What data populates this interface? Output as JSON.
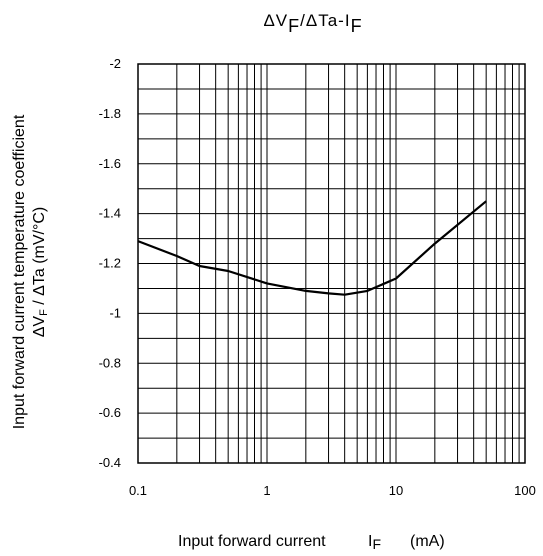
{
  "chart_data": {
    "type": "line",
    "title": {
      "base": "ΔV",
      "sub1": "F",
      "mid": "/ΔTa-I",
      "sub2": "F"
    },
    "xlabel": {
      "text": "Input forward current",
      "sym": "I",
      "sub": "F",
      "unit": "(mA)"
    },
    "ylabel": {
      "line1": "Input forward current temperature coefficient",
      "line2_pre": "ΔV",
      "line2_sub": "F",
      "line2_post": " / ΔTa (mV/°C)"
    },
    "x_scale": "log",
    "xlim": [
      0.1,
      100
    ],
    "ylim": [
      -0.4,
      -2
    ],
    "y_inverted": true,
    "x_ticks": [
      "0.1",
      "1",
      "10",
      "100"
    ],
    "y_ticks": [
      "-0.4",
      "-0.6",
      "-0.8",
      "-1",
      "-1.2",
      "-1.4",
      "-1.6",
      "-1.8",
      "-2"
    ],
    "grid": true,
    "series": [
      {
        "x": [
          0.1,
          0.2,
          0.3,
          0.5,
          1,
          2,
          3,
          4,
          6,
          10,
          20,
          50
        ],
        "y": [
          -1.29,
          -1.23,
          -1.19,
          -1.17,
          -1.12,
          -1.09,
          -1.08,
          -1.075,
          -1.09,
          -1.14,
          -1.28,
          -1.45
        ]
      }
    ]
  }
}
